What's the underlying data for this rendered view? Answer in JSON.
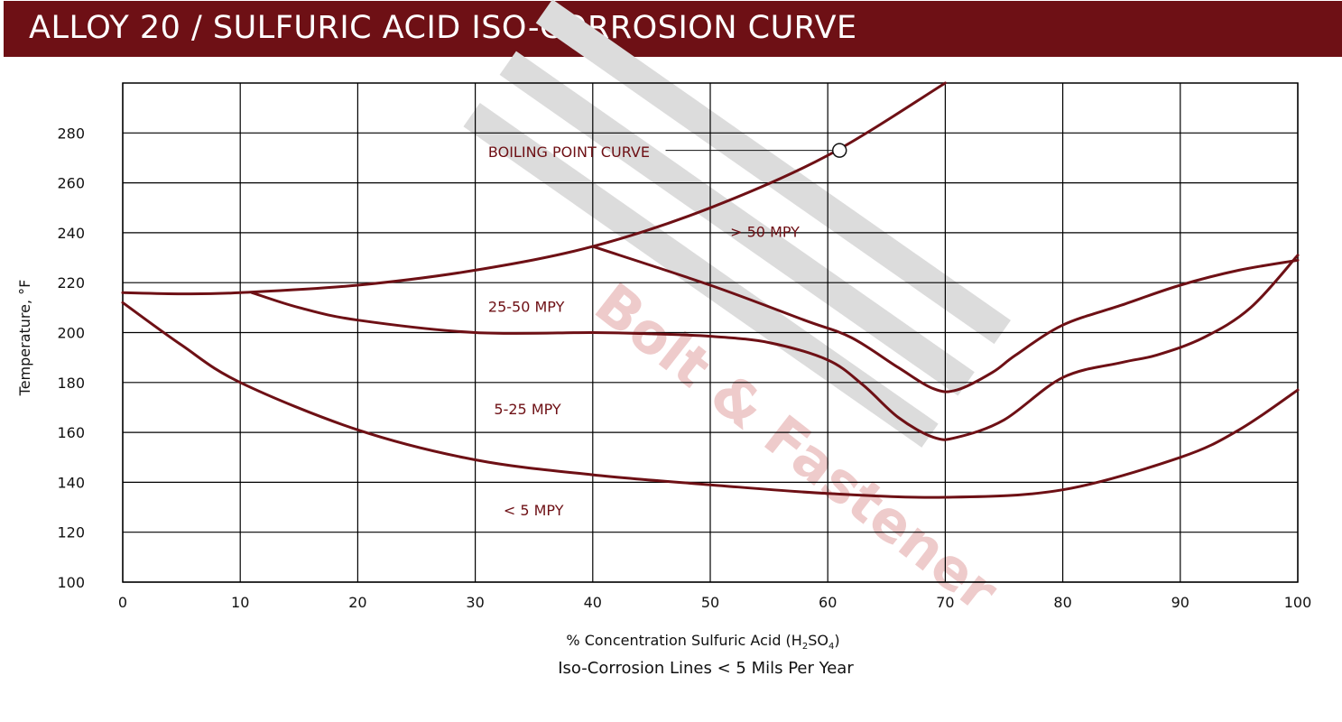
{
  "header": {
    "title": "ALLOY 20 / SULFURIC ACID ISO-CORROSION CURVE"
  },
  "watermark": {
    "lines": [
      "Bolt & Fastener"
    ]
  },
  "chart_data": {
    "type": "line",
    "title": "ALLOY 20 / SULFURIC ACID ISO-CORROSION CURVE",
    "ylabel": "Temperature, °F",
    "xlabel": {
      "main": "% Concentration Sulfuric Acid (H",
      "sub1": "2",
      "mid": "SO",
      "sub2": "4",
      "end": ")"
    },
    "subtitle": "Iso-Corrosion Lines < 5 Mils Per Year",
    "xlim": [
      0,
      100
    ],
    "ylim": [
      100,
      300
    ],
    "xticks": [
      0,
      10,
      20,
      30,
      40,
      50,
      60,
      70,
      80,
      90,
      100
    ],
    "yticks": [
      100,
      120,
      140,
      160,
      180,
      200,
      220,
      240,
      260,
      280
    ],
    "grid": true,
    "colors": {
      "curve": "#6e1015",
      "grid": "#000000",
      "banner": "#6e1015"
    },
    "boiling_marker": {
      "x": 61,
      "y": 273
    },
    "labels": [
      {
        "text": "BOILING POINT CURVE",
        "x": 31.1,
        "y": 272.5
      },
      {
        "text": "> 50 MPY",
        "x": 51.7,
        "y": 240.5
      },
      {
        "text": "25-50 MPY",
        "x": 31.1,
        "y": 210.5
      },
      {
        "text": "5-25 MPY",
        "x": 31.6,
        "y": 169.5
      },
      {
        "text": "< 5 MPY",
        "x": 32.4,
        "y": 129
      }
    ],
    "series": [
      {
        "points": [
          [
            0,
            216
          ],
          [
            5,
            215.5
          ],
          [
            10,
            216
          ],
          [
            20,
            219
          ],
          [
            30,
            225
          ],
          [
            40,
            234.5
          ],
          [
            50,
            250
          ],
          [
            60,
            271
          ],
          [
            70,
            300
          ]
        ]
      },
      {
        "points": [
          [
            40,
            234.5
          ],
          [
            50,
            219
          ],
          [
            58,
            205
          ],
          [
            62,
            198
          ],
          [
            66,
            186
          ],
          [
            69,
            177.5
          ],
          [
            71,
            177
          ],
          [
            74,
            184
          ],
          [
            76,
            191
          ],
          [
            80,
            203
          ],
          [
            85,
            211
          ],
          [
            90,
            219
          ],
          [
            95,
            225
          ],
          [
            100,
            229
          ]
        ]
      },
      {
        "points": [
          [
            11,
            216
          ],
          [
            15,
            210
          ],
          [
            20,
            205
          ],
          [
            30,
            200
          ],
          [
            40,
            200
          ],
          [
            45,
            199.5
          ],
          [
            50,
            198.5
          ],
          [
            55,
            196
          ],
          [
            60,
            189
          ],
          [
            63,
            179
          ],
          [
            66,
            166
          ],
          [
            69,
            158
          ],
          [
            71,
            158
          ],
          [
            75,
            165
          ],
          [
            80,
            182
          ],
          [
            85,
            188
          ],
          [
            88,
            191
          ],
          [
            92,
            198
          ],
          [
            96,
            210
          ],
          [
            100,
            231
          ]
        ]
      },
      {
        "points": [
          [
            0,
            212
          ],
          [
            5,
            195
          ],
          [
            10,
            180
          ],
          [
            20,
            161
          ],
          [
            30,
            149
          ],
          [
            40,
            143
          ],
          [
            50,
            139
          ],
          [
            60,
            135.5
          ],
          [
            70,
            134
          ],
          [
            80,
            137
          ],
          [
            90,
            150
          ],
          [
            95,
            161
          ],
          [
            100,
            177
          ]
        ]
      }
    ]
  }
}
